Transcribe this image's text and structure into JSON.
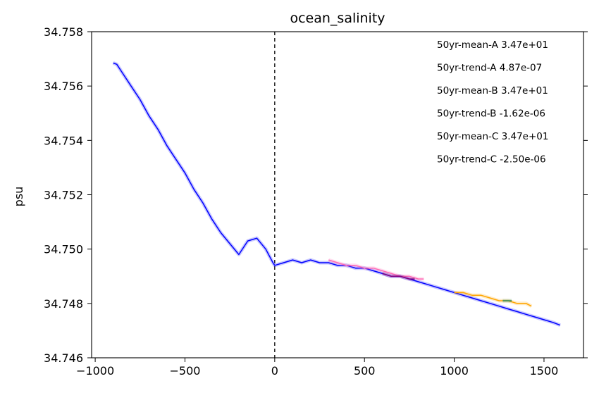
{
  "chart_data": {
    "type": "line",
    "title": "ocean_salinity",
    "xlabel": "",
    "ylabel": "psu",
    "xlim": [
      -1020,
      1720
    ],
    "ylim": [
      34.746,
      34.758
    ],
    "x_ticks": [
      -1000,
      -500,
      0,
      500,
      1000,
      1500
    ],
    "x_tick_labels": [
      "−1000",
      "−500",
      "0",
      "500",
      "1000",
      "1500"
    ],
    "y_ticks": [
      34.746,
      34.748,
      34.75,
      34.752,
      34.754,
      34.756,
      34.758
    ],
    "y_tick_labels": [
      "34.746",
      "34.748",
      "34.750",
      "34.752",
      "34.754",
      "34.756",
      "34.758"
    ],
    "vline": {
      "x": 0,
      "style": "dashed",
      "color": "#000000"
    },
    "grid": false,
    "annotations": [
      "50yr-mean-A  3.47e+01",
      "50yr-trend-A  4.87e-07",
      "50yr-mean-B  3.47e+01",
      "50yr-trend-B  -1.62e-06",
      "50yr-mean-C  3.47e+01",
      "50yr-trend-C  -2.50e-06"
    ],
    "series": [
      {
        "color": "#0000ff",
        "x": [
          -900,
          -880,
          -850,
          -800,
          -750,
          -700,
          -650,
          -600,
          -550,
          -500,
          -450,
          -400,
          -350,
          -300,
          -250,
          -200,
          -150,
          -100,
          -50,
          -10,
          0,
          50,
          100,
          150,
          200,
          250,
          300,
          350,
          400,
          450,
          500,
          550,
          600,
          650,
          700,
          750,
          800,
          850,
          900,
          950,
          1000,
          1050,
          1100,
          1150,
          1200,
          1250,
          1300,
          1350,
          1400,
          1450,
          1500,
          1550,
          1590
        ],
        "y": [
          34.75685,
          34.7568,
          34.7565,
          34.756,
          34.7555,
          34.7549,
          34.7544,
          34.7538,
          34.7533,
          34.7528,
          34.7522,
          34.7517,
          34.7511,
          34.7506,
          34.7502,
          34.7498,
          34.7503,
          34.7504,
          34.75,
          34.7495,
          34.7494,
          34.7495,
          34.7496,
          34.7495,
          34.7496,
          34.7495,
          34.7495,
          34.7494,
          34.7494,
          34.7493,
          34.7493,
          34.7492,
          34.7491,
          34.749,
          34.749,
          34.7489,
          34.7488,
          34.7487,
          34.7486,
          34.7485,
          34.7484,
          34.7483,
          34.7482,
          34.7481,
          34.748,
          34.7479,
          34.7478,
          34.7477,
          34.7476,
          34.7475,
          34.7474,
          34.7473,
          34.7472
        ]
      },
      {
        "color": "#ff69b4",
        "x": [
          300,
          350,
          400,
          450,
          500,
          550,
          600,
          650,
          700,
          750,
          800,
          830
        ],
        "y": [
          34.7496,
          34.7495,
          34.7494,
          34.7494,
          34.7493,
          34.7493,
          34.7492,
          34.7491,
          34.749,
          34.749,
          34.7489,
          34.7489
        ]
      },
      {
        "color": "#800080",
        "x": [
          600,
          650,
          700,
          750,
          780
        ],
        "y": [
          34.7491,
          34.749,
          34.749,
          34.7489,
          34.7489
        ]
      },
      {
        "color": "#ffa500",
        "x": [
          1000,
          1050,
          1100,
          1150,
          1200,
          1250,
          1300,
          1350,
          1400,
          1430
        ],
        "y": [
          34.7484,
          34.7484,
          34.7483,
          34.7483,
          34.7482,
          34.7481,
          34.7481,
          34.748,
          34.748,
          34.7479
        ]
      },
      {
        "color": "#2e8b57",
        "x": [
          1270,
          1300,
          1320
        ],
        "y": [
          34.7481,
          34.7481,
          34.7481
        ]
      }
    ]
  }
}
